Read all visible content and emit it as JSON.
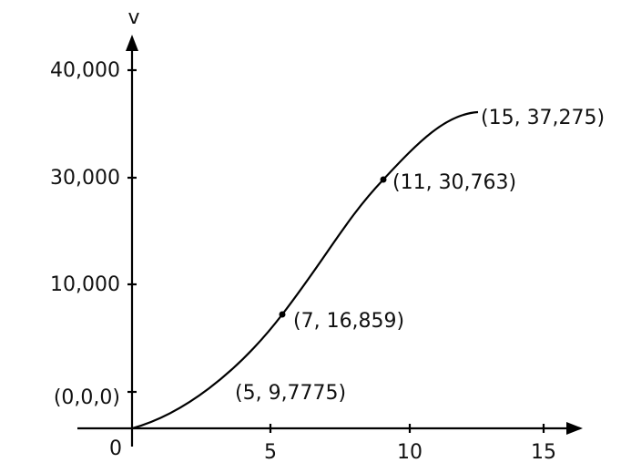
{
  "axes": {
    "y_label": "v",
    "origin_label": "0",
    "y_tick_labels": [
      "40,000",
      "30,000",
      "10,000",
      "(0,0,0)"
    ],
    "x_tick_labels": [
      "5",
      "10",
      "15"
    ]
  },
  "annotations": [
    "(15, 37,275)",
    "(11, 30,763)",
    "(7, 16,859)",
    "(5, 9,7775)"
  ]
}
